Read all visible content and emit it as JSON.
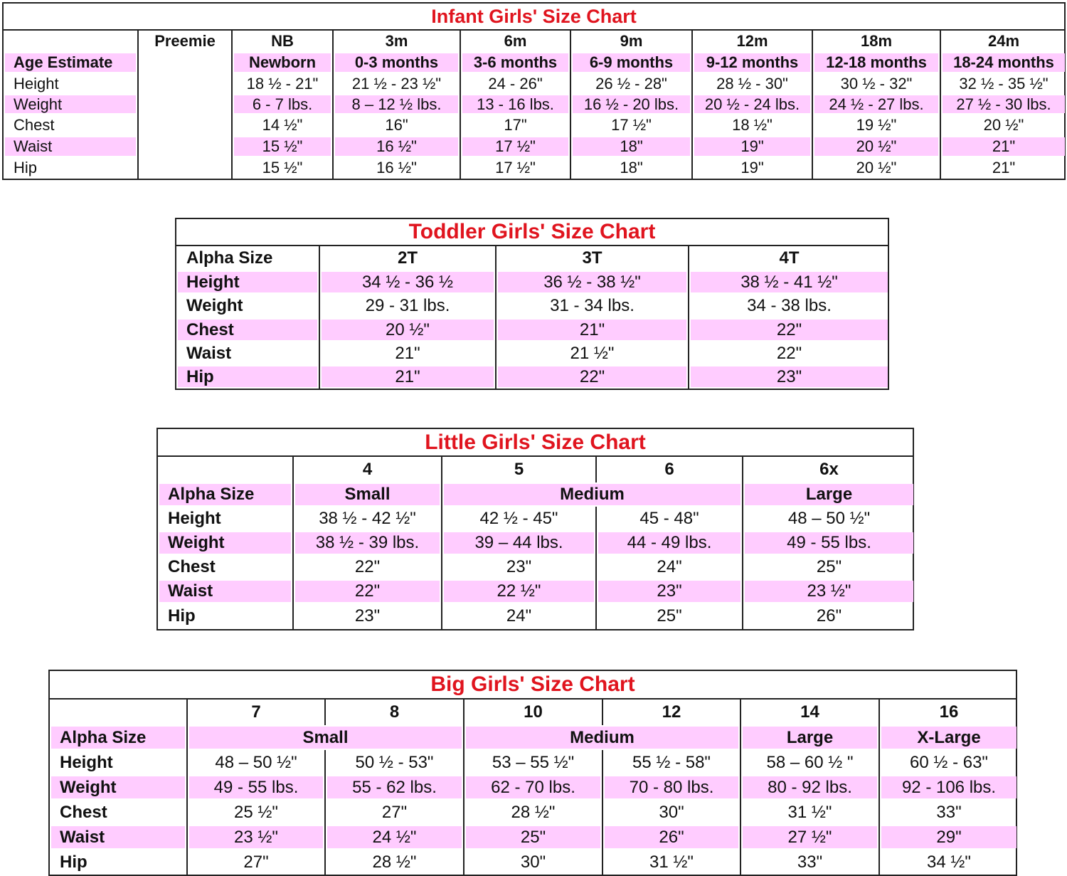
{
  "colors": {
    "title": "#e0141e",
    "highlight": "#ffccff",
    "border": "#222222"
  },
  "tables": [
    {
      "title": "Infant Girls' Size Chart",
      "rows": [
        {
          "label": "",
          "bold": true,
          "highlight": false,
          "cells": [
            {
              "text": "Preemie"
            },
            {
              "text": "NB"
            },
            {
              "text": "3m"
            },
            {
              "text": "6m"
            },
            {
              "text": "9m"
            },
            {
              "text": "12m"
            },
            {
              "text": "18m"
            },
            {
              "text": "24m"
            }
          ]
        },
        {
          "label": "Age Estimate",
          "bold": true,
          "highlight": true,
          "cells": [
            {
              "text": ""
            },
            {
              "text": "Newborn"
            },
            {
              "text": "0-3 months"
            },
            {
              "text": "3-6 months"
            },
            {
              "text": "6-9 months"
            },
            {
              "text": "9-12 months"
            },
            {
              "text": "12-18 months"
            },
            {
              "text": "18-24 months"
            }
          ]
        },
        {
          "label": "Height",
          "highlight": false,
          "cells": [
            {
              "text": ""
            },
            {
              "text": "18 ½ - 21\""
            },
            {
              "text": "21 ½ - 23 ½\""
            },
            {
              "text": "24 - 26\""
            },
            {
              "text": "26 ½ - 28\""
            },
            {
              "text": "28 ½ - 30\""
            },
            {
              "text": "30 ½ - 32\""
            },
            {
              "text": "32 ½ - 35 ½\""
            }
          ]
        },
        {
          "label": "Weight",
          "highlight": true,
          "cells": [
            {
              "text": ""
            },
            {
              "text": "6 - 7 lbs."
            },
            {
              "text": "8 – 12 ½ lbs."
            },
            {
              "text": "13 - 16 lbs."
            },
            {
              "text": "16 ½ - 20 lbs."
            },
            {
              "text": "20 ½ - 24 lbs."
            },
            {
              "text": "24 ½ - 27 lbs."
            },
            {
              "text": "27 ½ - 30 lbs."
            }
          ]
        },
        {
          "label": "Chest",
          "highlight": false,
          "cells": [
            {
              "text": ""
            },
            {
              "text": "14 ½\""
            },
            {
              "text": "16\""
            },
            {
              "text": "17\""
            },
            {
              "text": "17 ½\""
            },
            {
              "text": "18 ½\""
            },
            {
              "text": "19 ½\""
            },
            {
              "text": "20 ½\""
            }
          ]
        },
        {
          "label": "Waist",
          "highlight": true,
          "cells": [
            {
              "text": ""
            },
            {
              "text": "15 ½\""
            },
            {
              "text": "16 ½\""
            },
            {
              "text": "17 ½\""
            },
            {
              "text": "18\""
            },
            {
              "text": "19\""
            },
            {
              "text": "20 ½\""
            },
            {
              "text": "21\""
            }
          ]
        },
        {
          "label": "Hip",
          "highlight": false,
          "cells": [
            {
              "text": ""
            },
            {
              "text": "15 ½\""
            },
            {
              "text": "16 ½\""
            },
            {
              "text": "17 ½\""
            },
            {
              "text": "18\""
            },
            {
              "text": "19\""
            },
            {
              "text": "20 ½\""
            },
            {
              "text": "21\""
            }
          ]
        }
      ]
    },
    {
      "title": "Toddler Girls' Size Chart",
      "rows": [
        {
          "label": "Alpha Size",
          "bold": true,
          "highlight": false,
          "cells": [
            {
              "text": "2T"
            },
            {
              "text": "3T"
            },
            {
              "text": "4T"
            }
          ]
        },
        {
          "label": "Height",
          "highlight": true,
          "cells": [
            {
              "text": "34 ½ - 36 ½"
            },
            {
              "text": "36 ½ - 38 ½\""
            },
            {
              "text": "38 ½ - 41 ½\""
            }
          ]
        },
        {
          "label": "Weight",
          "highlight": false,
          "cells": [
            {
              "text": "29 - 31 lbs."
            },
            {
              "text": "31 - 34 lbs."
            },
            {
              "text": "34 - 38 lbs."
            }
          ]
        },
        {
          "label": "Chest",
          "highlight": true,
          "cells": [
            {
              "text": "20 ½\""
            },
            {
              "text": "21\""
            },
            {
              "text": "22\""
            }
          ]
        },
        {
          "label": "Waist",
          "highlight": false,
          "cells": [
            {
              "text": "21\""
            },
            {
              "text": "21 ½\""
            },
            {
              "text": "22\""
            }
          ]
        },
        {
          "label": "Hip",
          "highlight": true,
          "cells": [
            {
              "text": "21\""
            },
            {
              "text": "22\""
            },
            {
              "text": "23\""
            }
          ]
        }
      ]
    },
    {
      "title": "Little Girls' Size Chart",
      "rows": [
        {
          "label": "",
          "bold": true,
          "highlight": false,
          "cells": [
            {
              "text": "4"
            },
            {
              "text": "5"
            },
            {
              "text": "6"
            },
            {
              "text": "6x"
            }
          ]
        },
        {
          "label": "Alpha Size",
          "bold": true,
          "highlight": true,
          "cells": [
            {
              "text": "Small"
            },
            {
              "text": "Medium",
              "span": 2
            },
            {
              "text": "Large"
            }
          ]
        },
        {
          "label": "Height",
          "highlight": false,
          "cells": [
            {
              "text": "38 ½ - 42 ½\""
            },
            {
              "text": "42 ½ - 45\""
            },
            {
              "text": "45 - 48\""
            },
            {
              "text": "48 – 50 ½\""
            }
          ]
        },
        {
          "label": "Weight",
          "highlight": true,
          "cells": [
            {
              "text": "38 ½ - 39 lbs."
            },
            {
              "text": "39 – 44 lbs."
            },
            {
              "text": "44 - 49 lbs."
            },
            {
              "text": "49 - 55 lbs."
            }
          ]
        },
        {
          "label": "Chest",
          "highlight": false,
          "cells": [
            {
              "text": "22\""
            },
            {
              "text": "23\""
            },
            {
              "text": "24\""
            },
            {
              "text": "25\""
            }
          ]
        },
        {
          "label": "Waist",
          "highlight": true,
          "cells": [
            {
              "text": "22\""
            },
            {
              "text": "22 ½\""
            },
            {
              "text": "23\""
            },
            {
              "text": "23 ½\""
            }
          ]
        },
        {
          "label": "Hip",
          "highlight": false,
          "cells": [
            {
              "text": "23\""
            },
            {
              "text": "24\""
            },
            {
              "text": "25\""
            },
            {
              "text": "26\""
            }
          ]
        }
      ]
    },
    {
      "title": "Big Girls' Size Chart",
      "rows": [
        {
          "label": "",
          "bold": true,
          "highlight": false,
          "cells": [
            {
              "text": "7"
            },
            {
              "text": "8"
            },
            {
              "text": "10"
            },
            {
              "text": "12"
            },
            {
              "text": "14"
            },
            {
              "text": "16"
            }
          ]
        },
        {
          "label": "Alpha Size",
          "bold": true,
          "highlight": true,
          "cells": [
            {
              "text": "Small",
              "span": 2
            },
            {
              "text": "Medium",
              "span": 2
            },
            {
              "text": "Large"
            },
            {
              "text": "X-Large"
            }
          ]
        },
        {
          "label": "Height",
          "highlight": false,
          "cells": [
            {
              "text": "48 – 50 ½\""
            },
            {
              "text": "50 ½ - 53\""
            },
            {
              "text": "53 – 55 ½\""
            },
            {
              "text": "55 ½ - 58\""
            },
            {
              "text": "58 – 60 ½ \""
            },
            {
              "text": "60 ½ - 63\""
            }
          ]
        },
        {
          "label": "Weight",
          "highlight": true,
          "cells": [
            {
              "text": "49 - 55 lbs."
            },
            {
              "text": "55 - 62 lbs."
            },
            {
              "text": "62 - 70 lbs."
            },
            {
              "text": "70 - 80 lbs."
            },
            {
              "text": "80 - 92 lbs."
            },
            {
              "text": "92 - 106 lbs."
            }
          ]
        },
        {
          "label": "Chest",
          "highlight": false,
          "cells": [
            {
              "text": "25 ½\""
            },
            {
              "text": "27\""
            },
            {
              "text": "28 ½\""
            },
            {
              "text": "30\""
            },
            {
              "text": "31 ½\""
            },
            {
              "text": "33\""
            }
          ]
        },
        {
          "label": "Waist",
          "highlight": true,
          "cells": [
            {
              "text": "23 ½\""
            },
            {
              "text": "24 ½\""
            },
            {
              "text": "25\""
            },
            {
              "text": "26\""
            },
            {
              "text": "27 ½\""
            },
            {
              "text": "29\""
            }
          ]
        },
        {
          "label": "Hip",
          "highlight": false,
          "cells": [
            {
              "text": "27\""
            },
            {
              "text": "28 ½\""
            },
            {
              "text": "30\""
            },
            {
              "text": "31 ½\""
            },
            {
              "text": "33\""
            },
            {
              "text": "34 ½\""
            }
          ]
        }
      ]
    }
  ]
}
